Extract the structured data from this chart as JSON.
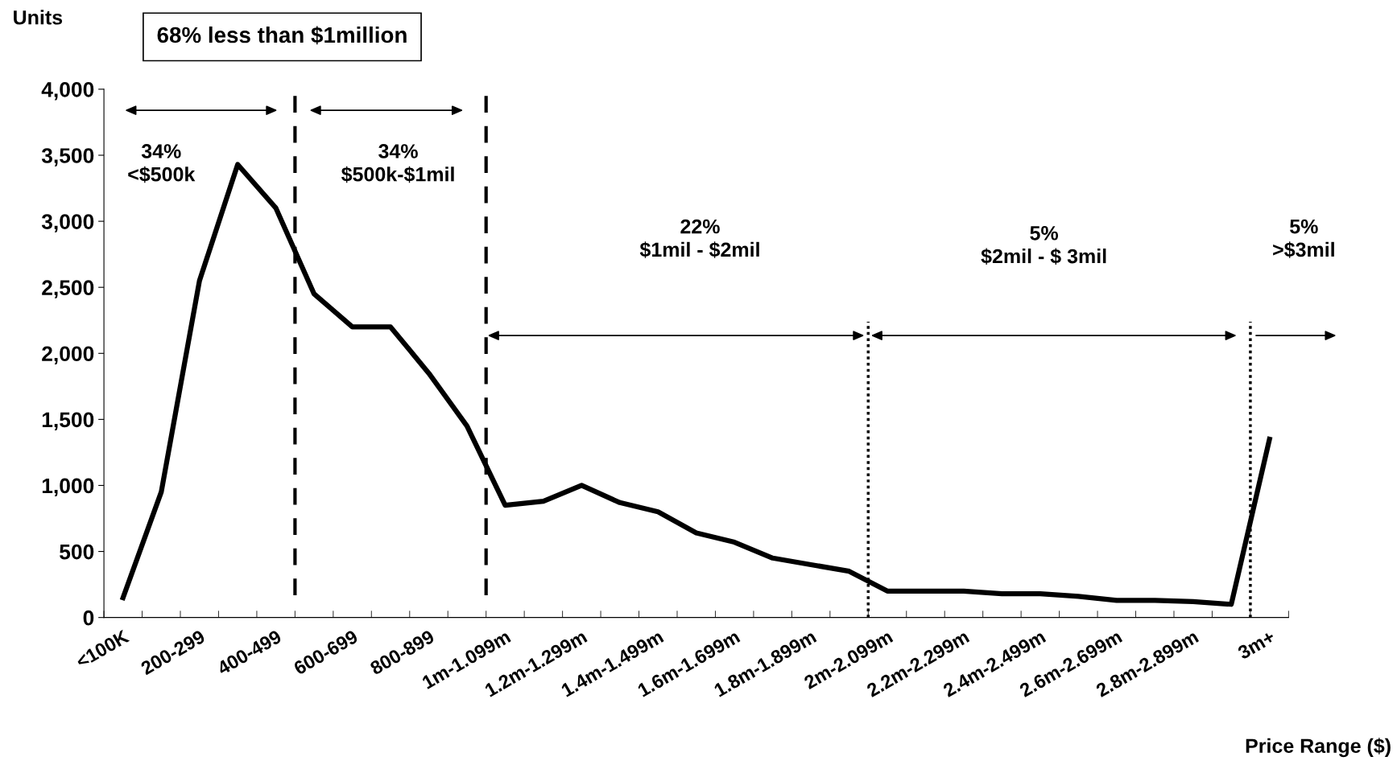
{
  "chart_data": {
    "type": "line",
    "title": "68% less than $1million",
    "ylabel": "Units",
    "xlabel": "Price Range ($)",
    "categories": [
      "<100K",
      null,
      "200-299",
      null,
      "400-499",
      null,
      "600-699",
      null,
      "800-899",
      null,
      "1m-1.099m",
      null,
      "1.2m-1.299m",
      null,
      "1.4m-1.499m",
      null,
      "1.6m-1.699m",
      null,
      "1.8m-1.899m",
      null,
      "2m-2.099m",
      null,
      "2.2m-2.299m",
      null,
      "2.4m-2.499m",
      null,
      "2.6m-2.699m",
      null,
      "2.8m-2.899m",
      null,
      "3m+"
    ],
    "series": [
      {
        "color": "#000000",
        "values": [
          150,
          950,
          2550,
          3430,
          3100,
          2450,
          2200,
          2200,
          1850,
          1450,
          850,
          880,
          1000,
          870,
          800,
          640,
          570,
          450,
          400,
          350,
          200,
          200,
          200,
          180,
          180,
          160,
          130,
          130,
          120,
          100,
          1350
        ]
      }
    ],
    "ylim": [
      0,
      4000
    ],
    "yticks": [
      {
        "value": 0,
        "label": "0"
      },
      {
        "value": 500,
        "label": "500"
      },
      {
        "value": 1000,
        "label": "1,000"
      },
      {
        "value": 1500,
        "label": "1,500"
      },
      {
        "value": 2000,
        "label": "2,000"
      },
      {
        "value": 2500,
        "label": "2,500"
      },
      {
        "value": 3000,
        "label": "3,000"
      },
      {
        "value": 3500,
        "label": "3,500"
      },
      {
        "value": 4000,
        "label": "4,000"
      }
    ],
    "annotations": [
      "34%\n<$500k",
      "34%\n$500k-$1mil",
      "22%\n$1mil - $2mil",
      "5%\n$2mil - $ 3mil",
      "5%\n>$3mil"
    ],
    "grid": false,
    "legend": false,
    "marker": "none",
    "line_style": "solid"
  }
}
